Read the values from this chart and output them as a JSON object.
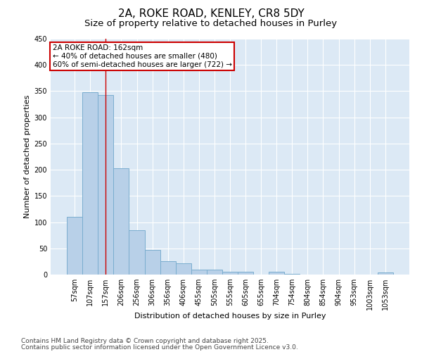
{
  "title1": "2A, ROKE ROAD, KENLEY, CR8 5DY",
  "title2": "Size of property relative to detached houses in Purley",
  "xlabel": "Distribution of detached houses by size in Purley",
  "ylabel": "Number of detached properties",
  "categories": [
    "57sqm",
    "107sqm",
    "157sqm",
    "206sqm",
    "256sqm",
    "306sqm",
    "356sqm",
    "406sqm",
    "455sqm",
    "505sqm",
    "555sqm",
    "605sqm",
    "655sqm",
    "704sqm",
    "754sqm",
    "804sqm",
    "854sqm",
    "904sqm",
    "953sqm",
    "1003sqm",
    "1053sqm"
  ],
  "values": [
    110,
    348,
    343,
    203,
    85,
    47,
    25,
    22,
    10,
    9,
    6,
    6,
    0,
    6,
    2,
    0,
    0,
    0,
    0,
    0,
    4
  ],
  "bar_color": "#b8d0e8",
  "bar_edge_color": "#7aadcf",
  "vline_x": 2.0,
  "vline_color": "#cc0000",
  "annotation_box_text": "2A ROKE ROAD: 162sqm\n← 40% of detached houses are smaller (480)\n60% of semi-detached houses are larger (722) →",
  "annotation_box_color": "#cc0000",
  "annotation_box_bg": "#ffffff",
  "ylim": [
    0,
    450
  ],
  "yticks": [
    0,
    50,
    100,
    150,
    200,
    250,
    300,
    350,
    400,
    450
  ],
  "background_color": "#dce9f5",
  "footer1": "Contains HM Land Registry data © Crown copyright and database right 2025.",
  "footer2": "Contains public sector information licensed under the Open Government Licence v3.0.",
  "title_fontsize": 11,
  "subtitle_fontsize": 9.5,
  "axis_label_fontsize": 8,
  "tick_fontsize": 7,
  "annotation_fontsize": 7.5,
  "footer_fontsize": 6.5
}
